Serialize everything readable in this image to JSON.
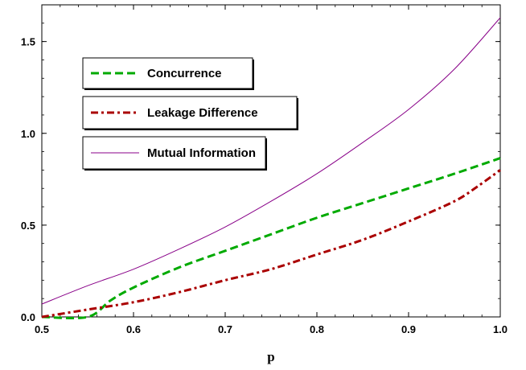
{
  "chart_data": {
    "type": "line",
    "xlabel": "p",
    "ylabel": "",
    "title": "",
    "xlim": [
      0.5,
      1.0
    ],
    "ylim": [
      0.0,
      1.7
    ],
    "x_ticks": [
      0.5,
      0.6,
      0.7,
      0.8,
      0.9,
      1.0
    ],
    "x_tick_labels": [
      "0.5",
      "0.6",
      "0.7",
      "0.8",
      "0.9",
      "1.0"
    ],
    "y_ticks": [
      0.0,
      0.5,
      1.0,
      1.5
    ],
    "y_tick_labels": [
      "0.0",
      "0.5",
      "1.0",
      "1.5"
    ],
    "grid": false,
    "legend_position": "top-left",
    "series": [
      {
        "name": "Concurrence",
        "color": "#00aa00",
        "style": "dashed",
        "x": [
          0.5,
          0.55,
          0.575,
          0.6,
          0.65,
          0.7,
          0.75,
          0.8,
          0.85,
          0.9,
          0.95,
          1.0
        ],
        "y": [
          0.0,
          0.0,
          0.09,
          0.16,
          0.27,
          0.36,
          0.45,
          0.54,
          0.62,
          0.7,
          0.78,
          0.865
        ]
      },
      {
        "name": "Leakage Difference",
        "color": "#aa0000",
        "style": "dashdot",
        "x": [
          0.5,
          0.55,
          0.6,
          0.65,
          0.7,
          0.75,
          0.8,
          0.85,
          0.9,
          0.95,
          0.975,
          1.0
        ],
        "y": [
          0.0,
          0.04,
          0.08,
          0.135,
          0.2,
          0.26,
          0.34,
          0.42,
          0.52,
          0.63,
          0.71,
          0.8
        ]
      },
      {
        "name": "Mutual Information",
        "color": "#880088",
        "style": "solid",
        "x": [
          0.5,
          0.55,
          0.6,
          0.65,
          0.7,
          0.75,
          0.8,
          0.85,
          0.9,
          0.95,
          1.0
        ],
        "y": [
          0.07,
          0.17,
          0.26,
          0.37,
          0.49,
          0.63,
          0.78,
          0.95,
          1.13,
          1.35,
          1.63
        ]
      }
    ]
  }
}
